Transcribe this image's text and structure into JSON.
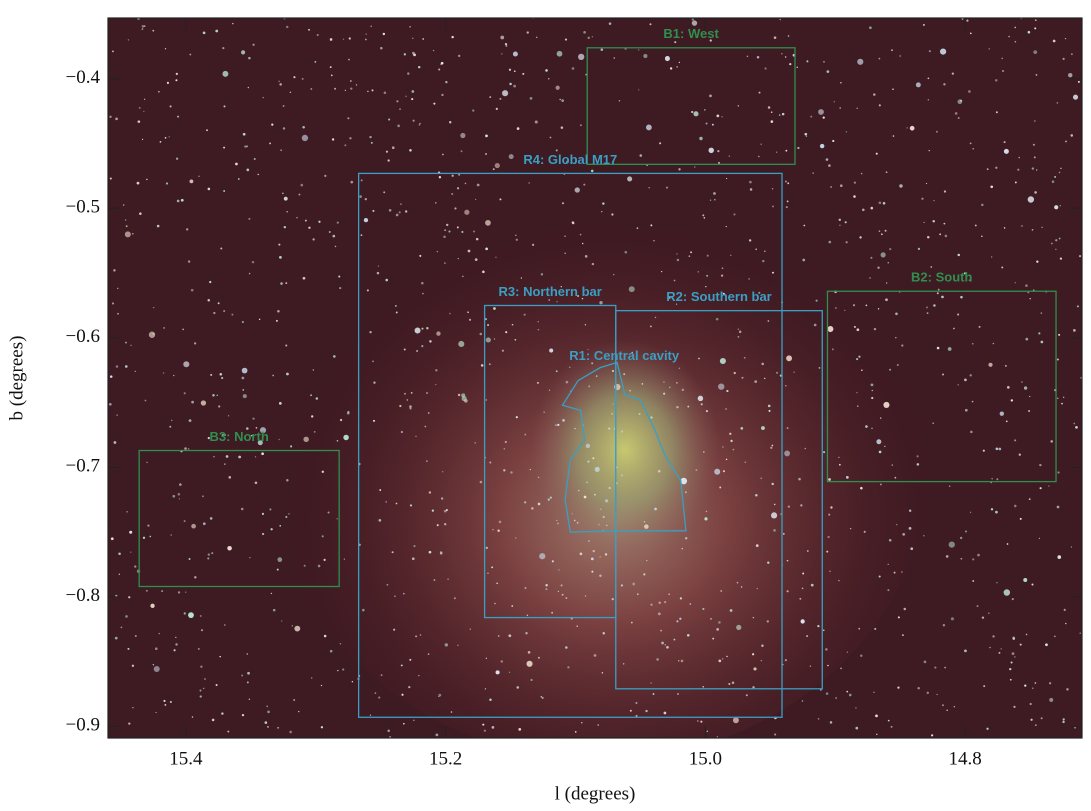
{
  "chart_data": {
    "type": "sky-image",
    "x_label": "l (degrees)",
    "y_label": "b (degrees)",
    "xlim": [
      15.46,
      14.71
    ],
    "ylim": [
      -0.909,
      -0.353
    ],
    "xticks": [
      15.4,
      15.2,
      {
        "value": 15,
        "label": "15.0"
      },
      14.8
    ],
    "yticks": [
      {
        "value": -0.4,
        "label": "−0.4"
      },
      {
        "value": -0.5,
        "label": "−0.5"
      },
      {
        "value": -0.6,
        "label": "−0.6"
      },
      {
        "value": -0.7,
        "label": "−0.7"
      },
      {
        "value": -0.8,
        "label": "−0.8"
      },
      {
        "value": -0.9,
        "label": "−0.9"
      }
    ],
    "regions": [
      {
        "label": "B1: West",
        "color": "#2f8f4f",
        "l": [
          15.091,
          14.931
        ],
        "b": [
          -0.376,
          -0.466
        ]
      },
      {
        "label": "R4: Global M17",
        "color": "#3a9fc4",
        "l": [
          15.267,
          14.941
        ],
        "b": [
          -0.473,
          -0.893
        ]
      },
      {
        "label": "B2: South",
        "color": "#2f8f4f",
        "l": [
          14.906,
          14.73
        ],
        "b": [
          -0.564,
          -0.711
        ]
      },
      {
        "label": "R3: Northern bar",
        "color": "#3a9fc4",
        "l": [
          15.17,
          15.069
        ],
        "b": [
          -0.575,
          -0.816
        ]
      },
      {
        "label": "R2: Southern bar",
        "color": "#3a9fc4",
        "l": [
          15.069,
          14.91
        ],
        "b": [
          -0.579,
          -0.871
        ]
      },
      {
        "label": "B3: North",
        "color": "#2f8f4f",
        "l": [
          15.436,
          15.282
        ],
        "b": [
          -0.687,
          -0.792
        ]
      }
    ],
    "polygon": {
      "label": "R1: Central cavity",
      "color": "#3a9fc4",
      "l": [
        15.098,
        15.081,
        15.068,
        15.062,
        15.05,
        15.039,
        15.031,
        15.019,
        15.015,
        15.066,
        15.104,
        15.108,
        15.104,
        15.093,
        15.096,
        15.11
      ],
      "b": [
        -0.633,
        -0.623,
        -0.619,
        -0.644,
        -0.648,
        -0.671,
        -0.691,
        -0.71,
        -0.749,
        -0.749,
        -0.75,
        -0.725,
        -0.694,
        -0.679,
        -0.656,
        -0.652
      ]
    }
  }
}
